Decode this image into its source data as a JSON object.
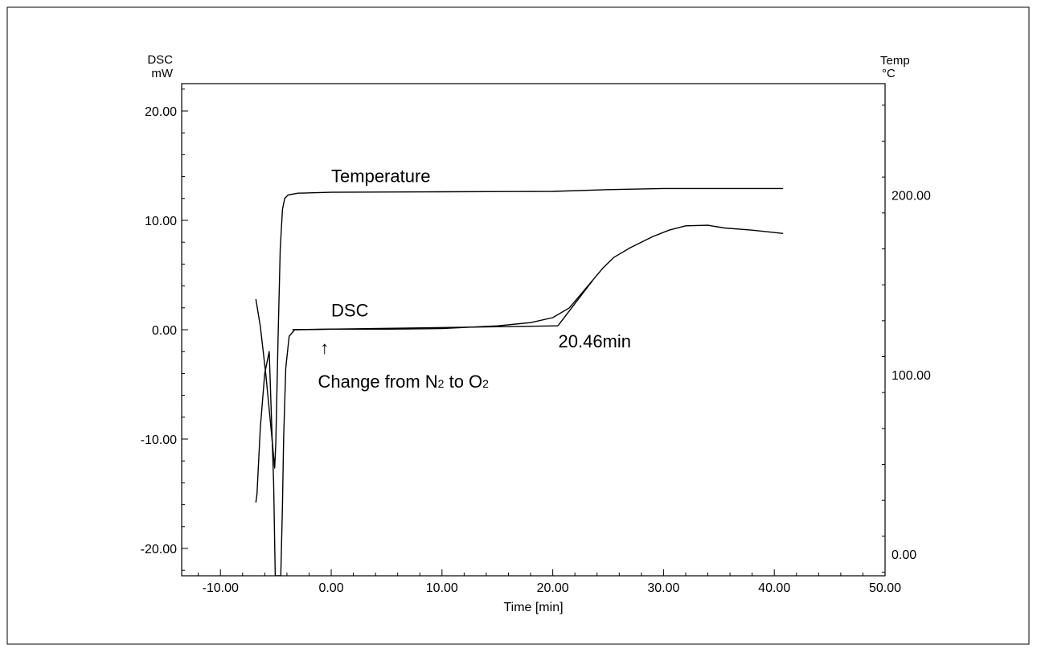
{
  "chart_data": {
    "type": "line",
    "xlabel": "Time [min]",
    "y_left_label": "DSC",
    "y_left_unit": "mW",
    "y_right_label": "Temp",
    "y_right_unit": "°C",
    "xlim": [
      -13.5,
      50
    ],
    "ylim_left": [
      -22.5,
      22.5
    ],
    "ylim_right": [
      -12,
      262
    ],
    "x_ticks": [
      "-10.00",
      "0.00",
      "10.00",
      "20.00",
      "30.00",
      "40.00",
      "50.00"
    ],
    "y_left_ticks": [
      "20.00",
      "10.00",
      "0.00",
      "-10.00",
      "-20.00"
    ],
    "y_right_ticks": [
      "200.00",
      "100.00",
      "0.00"
    ],
    "series": [
      {
        "name": "Temperature",
        "axis": "right",
        "color": "#000000",
        "points": [
          [
            -6.8,
            142
          ],
          [
            -6.4,
            127
          ],
          [
            -5.9,
            100
          ],
          [
            -5.4,
            68
          ],
          [
            -5.1,
            48
          ],
          [
            -5.0,
            62
          ],
          [
            -4.8,
            120
          ],
          [
            -4.6,
            170
          ],
          [
            -4.4,
            192
          ],
          [
            -4.2,
            198
          ],
          [
            -3.9,
            200
          ],
          [
            -3.0,
            201
          ],
          [
            0.0,
            201.5
          ],
          [
            10.0,
            201.8
          ],
          [
            20.0,
            202
          ],
          [
            25.0,
            203
          ],
          [
            30.0,
            203.6
          ],
          [
            35.0,
            203.6
          ],
          [
            40.8,
            203.6
          ]
        ]
      },
      {
        "name": "DSC",
        "axis": "left",
        "color": "#000000",
        "points": [
          [
            -6.8,
            -15.8
          ],
          [
            -6.7,
            -15.0
          ],
          [
            -6.4,
            -9.0
          ],
          [
            -6.0,
            -4.0
          ],
          [
            -5.6,
            -2.0
          ],
          [
            -5.2,
            -14.0
          ],
          [
            -5.05,
            -22.5
          ],
          [
            -4.55,
            -22.5
          ],
          [
            -4.4,
            -16.0
          ],
          [
            -4.3,
            -10.0
          ],
          [
            -4.1,
            -3.5
          ],
          [
            -3.8,
            -0.6
          ],
          [
            -3.3,
            0.0
          ],
          [
            0.0,
            0.05
          ],
          [
            5.0,
            0.05
          ],
          [
            10.0,
            0.1
          ],
          [
            15.0,
            0.35
          ],
          [
            18.0,
            0.65
          ],
          [
            20.0,
            1.1
          ],
          [
            21.5,
            2.0
          ],
          [
            23.0,
            3.8
          ],
          [
            24.5,
            5.6
          ],
          [
            25.5,
            6.6
          ],
          [
            27.0,
            7.5
          ],
          [
            29.0,
            8.5
          ],
          [
            30.5,
            9.1
          ],
          [
            32.0,
            9.5
          ],
          [
            34.0,
            9.55
          ],
          [
            35.5,
            9.3
          ],
          [
            38.0,
            9.1
          ],
          [
            40.8,
            8.8
          ]
        ]
      }
    ],
    "baseline": [
      [
        -3.5,
        0.0
      ],
      [
        20.46,
        0.35
      ]
    ],
    "tangent": [
      [
        20.46,
        0.35
      ],
      [
        23.6,
        4.5
      ]
    ],
    "annotations": [
      {
        "text": "Temperature",
        "x": 0.0,
        "y": 13.5,
        "axis": "left"
      },
      {
        "text": "DSC",
        "x": 0.0,
        "y": 1.2,
        "axis": "left"
      },
      {
        "text": "20.46min",
        "x": 20.5,
        "y": -1.6,
        "axis": "left"
      },
      {
        "text_parts": [
          "Change from N",
          "2",
          " to O",
          "2"
        ],
        "x": -1.2,
        "y": -5.3,
        "axis": "left"
      }
    ],
    "arrow": {
      "glyph": "↑",
      "x": -0.6,
      "y": -2.2
    }
  }
}
